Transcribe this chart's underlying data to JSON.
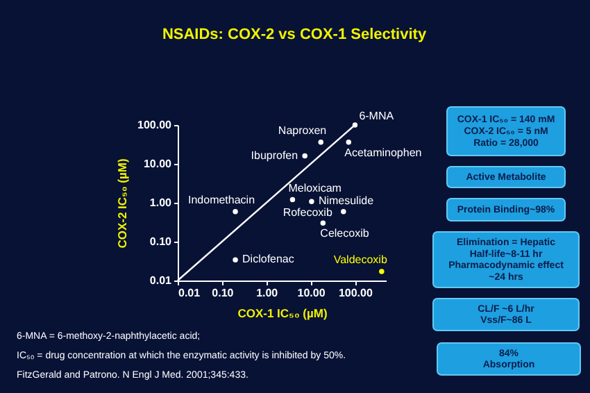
{
  "chart_data": [
    {
      "type": "scatter",
      "title": "NSAIDs: COX-2 vs COX-1 Selectivity",
      "xlabel": "COX-1 IC₅₀ (µM)",
      "ylabel": "COX-2 IC₅₀ (µM)",
      "log": "xy",
      "xlim": [
        0.01,
        500
      ],
      "ylim": [
        0.01,
        100
      ],
      "xticks": [
        0.01,
        {
          "value": 0.1,
          "label": "0.10"
        },
        {
          "value": 1,
          "label": "1.00"
        },
        {
          "value": 10,
          "label": "10.00"
        },
        {
          "value": 100,
          "label": "100.00"
        }
      ],
      "yticks": [
        0.01,
        {
          "value": 0.1,
          "label": "0.10"
        },
        {
          "value": 1,
          "label": "1.00"
        },
        {
          "value": 10,
          "label": "10.00"
        },
        {
          "value": 100,
          "label": "100.00"
        }
      ],
      "grid": false,
      "marker": "circle",
      "series": [
        {
          "type": "line",
          "color": "#ffffff",
          "marker": "none",
          "x": [
            0.01,
            100
          ],
          "values": [
            0.01,
            100
          ]
        },
        {
          "name": "6-MNA",
          "color": "#ffffff",
          "x": [
            100
          ],
          "values": [
            100
          ]
        },
        {
          "name": "Naproxen",
          "color": "#ffffff",
          "x": [
            17
          ],
          "values": [
            36
          ]
        },
        {
          "name": "Acetaminophen",
          "color": "#ffffff",
          "x": [
            72
          ],
          "values": [
            36
          ]
        },
        {
          "name": "Ibuprofen",
          "color": "#ffffff",
          "x": [
            7.4
          ],
          "values": [
            16
          ]
        },
        {
          "name": "Meloxicam",
          "color": "#ffffff",
          "x": [
            3.9
          ],
          "values": [
            1.2
          ]
        },
        {
          "name": "Nimesulide",
          "color": "#ffffff",
          "x": [
            10.5
          ],
          "values": [
            1.07
          ]
        },
        {
          "name": "Indomethacin",
          "color": "#ffffff",
          "x": [
            0.2
          ],
          "values": [
            0.59
          ]
        },
        {
          "name": "Rofecoxib",
          "color": "#ffffff",
          "x": [
            55
          ],
          "values": [
            0.59
          ]
        },
        {
          "name": "Celecoxib",
          "color": "#ffffff",
          "x": [
            19
          ],
          "values": [
            0.3
          ]
        },
        {
          "name": "Diclofenac",
          "color": "#ffffff",
          "x": [
            0.2
          ],
          "values": [
            0.034
          ]
        },
        {
          "name": "Valdecoxib",
          "color": "#ffff00",
          "x": [
            400
          ],
          "values": [
            0.017
          ]
        }
      ],
      "annotations": [
        "6-MNA = 6-methoxy-2-naphthylacetic acid;",
        "IC₅₀ = drug concentration at which the enzymatic activity is inhibited by 50%.",
        "FitzGerald and Patrono. N Engl J Med. 2001;345:433."
      ]
    },
    {
      "type": "other",
      "annotations": [
        "COX-1 IC₅₀ = 140 mM\nCOX-2 IC₅₀ = 5 nM\nRatio = 28,000",
        "Active Metabolite",
        "Protein Binding~98%",
        "Elimination = Hepatic\nHalf-life~8-11 hr\nPharmacodynamic effect\n~24 hrs",
        "CL/F ~6 L/hr\nVss/F~86 L",
        "84%\nAbsorption"
      ]
    }
  ]
}
